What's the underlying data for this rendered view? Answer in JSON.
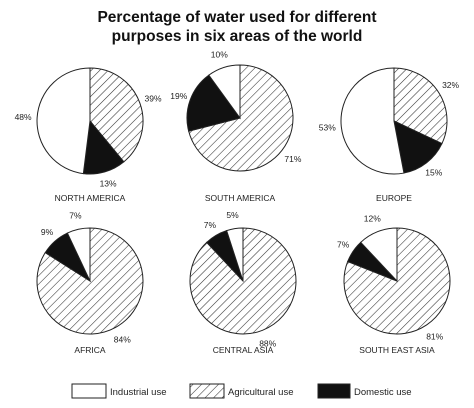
{
  "title_line1": "Percentage of water used for different",
  "title_line2": "purposes in six areas of the world",
  "chart_data": {
    "type": "pie",
    "categories": [
      "Industrial use",
      "Agricultural use",
      "Domestic use"
    ],
    "styles": {
      "Industrial use": "white",
      "Agricultural use": "hatched",
      "Domestic use": "black"
    },
    "colors": {
      "stroke": "#222222",
      "industrial": "#ffffff",
      "domestic": "#111111",
      "hatch": "#333333"
    },
    "legend_position": "bottom",
    "charts": [
      {
        "region": "NORTH AMERICA",
        "values": {
          "Industrial use": 48,
          "Agricultural use": 39,
          "Domestic use": 13
        }
      },
      {
        "region": "SOUTH AMERICA",
        "values": {
          "Industrial use": 10,
          "Agricultural use": 71,
          "Domestic use": 19
        }
      },
      {
        "region": "EUROPE",
        "values": {
          "Industrial use": 53,
          "Agricultural use": 32,
          "Domestic use": 15
        }
      },
      {
        "region": "AFRICA",
        "values": {
          "Industrial use": 7,
          "Agricultural use": 84,
          "Domestic use": 9
        }
      },
      {
        "region": "CENTRAL ASIA",
        "values": {
          "Industrial use": 5,
          "Agricultural use": 88,
          "Domestic use": 7
        }
      },
      {
        "region": "SOUTH EAST ASIA",
        "values": {
          "Industrial use": 12,
          "Agricultural use": 81,
          "Domestic use": 7
        }
      }
    ]
  }
}
